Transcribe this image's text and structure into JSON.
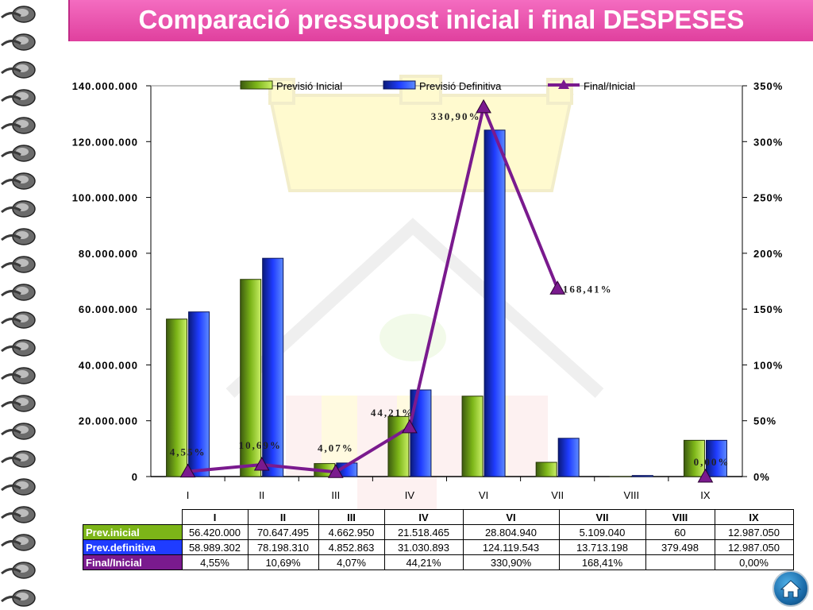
{
  "title": "Comparació pressupost inicial i final DESPESES",
  "colors": {
    "inicial": "#7cb518",
    "definitiva": "#1f3cff",
    "final": "#7a1a8e",
    "title_bg": "#e8439f"
  },
  "chart_data": {
    "type": "bar",
    "categories": [
      "I",
      "II",
      "III",
      "IV",
      "VI",
      "VII",
      "VIII",
      "IX"
    ],
    "series": [
      {
        "name": "Previsió Inicial",
        "type": "bar",
        "axis": "left",
        "values": [
          56420000,
          70647495,
          4662950,
          21518465,
          28804940,
          5109040,
          60,
          12987050
        ]
      },
      {
        "name": "Previsió Definitiva",
        "type": "bar",
        "axis": "right_bar",
        "values": [
          58989302,
          78198310,
          4852863,
          31030893,
          124119543,
          13713198,
          379498,
          12987050
        ]
      },
      {
        "name": "Final/Inicial",
        "type": "line",
        "axis": "right",
        "values": [
          4.55,
          10.69,
          4.07,
          44.21,
          330.9,
          168.41,
          null,
          0.0
        ]
      }
    ],
    "ylim": [
      0,
      140000000
    ],
    "y2lim": [
      0,
      350
    ],
    "y_ticks": [
      "0",
      "20.000.000",
      "40.000.000",
      "60.000.000",
      "80.000.000",
      "100.000.000",
      "120.000.000",
      "140.000.000"
    ],
    "y2_ticks": [
      "0%",
      "50%",
      "100%",
      "150%",
      "200%",
      "250%",
      "300%",
      "350%"
    ],
    "point_labels": [
      "4,55%",
      "10,69%",
      "4,07%",
      "44,21%",
      "330,90%",
      "168,41%",
      "",
      "0,00%"
    ],
    "legend": "top"
  },
  "table": {
    "headers": [
      "I",
      "II",
      "III",
      "IV",
      "VI",
      "VII",
      "VIII",
      "IX"
    ],
    "rows": [
      {
        "label": "Prev.inicial",
        "color": "#7cb518",
        "cells": [
          "56.420.000",
          "70.647.495",
          "4.662.950",
          "21.518.465",
          "28.804.940",
          "5.109.040",
          "60",
          "12.987.050"
        ]
      },
      {
        "label": "Prev.definitiva",
        "color": "#1f3cff",
        "cells": [
          "58.989.302",
          "78.198.310",
          "4.852.863",
          "31.030.893",
          "124.119.543",
          "13.713.198",
          "379.498",
          "12.987.050"
        ]
      },
      {
        "label": "Final/Inicial",
        "color": "#7a1a8e",
        "cells": [
          "4,55%",
          "10,69%",
          "4,07%",
          "44,21%",
          "330,90%",
          "168,41%",
          "",
          "0,00%"
        ]
      }
    ]
  }
}
